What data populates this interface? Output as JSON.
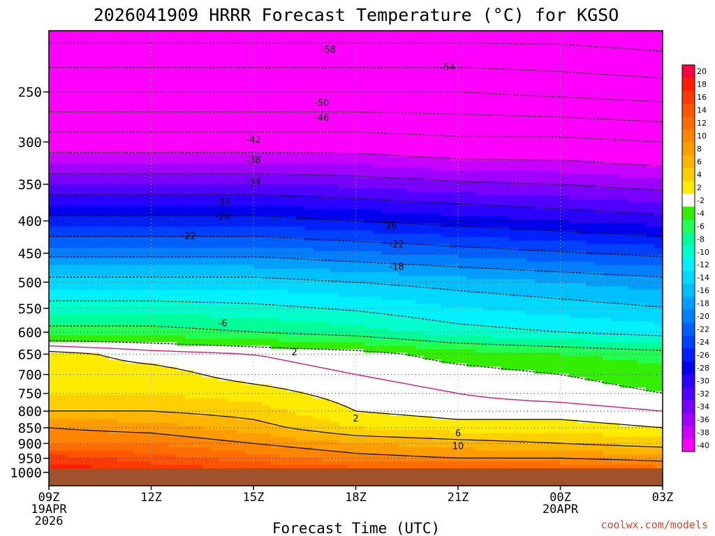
{
  "chart_data": {
    "type": "heatmap",
    "title": "2026041909 HRRR Forecast Temperature (°C) for KGSO",
    "xlabel": "Forecast Time (UTC)",
    "ylabel": "",
    "credit": "coolwx.com/models",
    "y_scale": "log-pressure (inverted)",
    "ylim": [
      1050,
      200
    ],
    "xlim": [
      0,
      18
    ],
    "x_ticks": [
      {
        "x": 0,
        "lines": [
          "09Z",
          "19APR",
          "2026"
        ]
      },
      {
        "x": 3,
        "lines": [
          "12Z"
        ]
      },
      {
        "x": 6,
        "lines": [
          "15Z"
        ]
      },
      {
        "x": 9,
        "lines": [
          "18Z"
        ]
      },
      {
        "x": 12,
        "lines": [
          "21Z"
        ]
      },
      {
        "x": 15,
        "lines": [
          "00Z",
          "20APR"
        ]
      },
      {
        "x": 18,
        "lines": [
          "03Z"
        ]
      }
    ],
    "y_ticks": [
      250,
      300,
      350,
      400,
      450,
      500,
      550,
      600,
      650,
      700,
      750,
      800,
      850,
      900,
      950,
      1000
    ],
    "colorbar": {
      "labels": [
        "20",
        "18",
        "16",
        "14",
        "12",
        "10",
        "8",
        "6",
        "4",
        "2",
        "-2",
        "-4",
        "-6",
        "-8",
        "-10",
        "-12",
        "-14",
        "-16",
        "-18",
        "-20",
        "-22",
        "-24",
        "-26",
        "-28",
        "-30",
        "-32",
        "-34",
        "-36",
        "-38",
        "-40"
      ],
      "colors": [
        "#ff0045",
        "#ff1f00",
        "#ff3a00",
        "#ff5500",
        "#ff6d00",
        "#ff8500",
        "#ff9d00",
        "#ffb400",
        "#ffd000",
        "#ffeb00",
        "#ffffff",
        "#33ee00",
        "#22ff55",
        "#00ff99",
        "#00ffcc",
        "#00f0ff",
        "#00d8ff",
        "#00bfff",
        "#009fff",
        "#007fff",
        "#0060ff",
        "#0040ff",
        "#0020ff",
        "#0000ee",
        "#2a00ff",
        "#5000ff",
        "#7a00ff",
        "#a000ff",
        "#c800ff",
        "#ff00ff"
      ]
    },
    "temperature_profiles": [
      {
        "x": 0,
        "levels": [
          [
            1000,
            20
          ],
          [
            950,
            17
          ],
          [
            900,
            12
          ],
          [
            850,
            10
          ],
          [
            800,
            6
          ],
          [
            750,
            4
          ],
          [
            700,
            3
          ],
          [
            650,
            3
          ],
          [
            600,
            -5
          ],
          [
            500,
            -13
          ],
          [
            400,
            -25
          ],
          [
            300,
            -40
          ],
          [
            250,
            -50
          ],
          [
            200,
            -60
          ]
        ]
      },
      {
        "x": 3,
        "levels": [
          [
            1000,
            18
          ],
          [
            950,
            15
          ],
          [
            900,
            12
          ],
          [
            850,
            9
          ],
          [
            800,
            6
          ],
          [
            750,
            4
          ],
          [
            700,
            3
          ],
          [
            650,
            1
          ],
          [
            600,
            -5
          ],
          [
            500,
            -13
          ],
          [
            400,
            -25
          ],
          [
            300,
            -40
          ],
          [
            250,
            -50
          ],
          [
            200,
            -60
          ]
        ]
      },
      {
        "x": 6,
        "levels": [
          [
            1000,
            17
          ],
          [
            950,
            13
          ],
          [
            900,
            10
          ],
          [
            850,
            7
          ],
          [
            800,
            5
          ],
          [
            750,
            3
          ],
          [
            700,
            1
          ],
          [
            650,
            0
          ],
          [
            600,
            -6
          ],
          [
            500,
            -13
          ],
          [
            400,
            -25
          ],
          [
            300,
            -40
          ],
          [
            250,
            -50
          ],
          [
            200,
            -60
          ]
        ]
      },
      {
        "x": 9,
        "levels": [
          [
            1000,
            16
          ],
          [
            950,
            11
          ],
          [
            900,
            8
          ],
          [
            850,
            4
          ],
          [
            800,
            2
          ],
          [
            750,
            1
          ],
          [
            700,
            0
          ],
          [
            650,
            -1
          ],
          [
            600,
            -7
          ],
          [
            500,
            -14
          ],
          [
            400,
            -26
          ],
          [
            300,
            -40
          ],
          [
            250,
            -50
          ],
          [
            200,
            -60
          ]
        ]
      },
      {
        "x": 12,
        "levels": [
          [
            1000,
            16
          ],
          [
            950,
            10
          ],
          [
            900,
            7
          ],
          [
            850,
            3
          ],
          [
            800,
            1
          ],
          [
            750,
            0
          ],
          [
            700,
            -1
          ],
          [
            650,
            -3
          ],
          [
            600,
            -9
          ],
          [
            500,
            -15
          ],
          [
            400,
            -27
          ],
          [
            300,
            -41
          ],
          [
            250,
            -50
          ],
          [
            200,
            -60
          ]
        ]
      },
      {
        "x": 15,
        "levels": [
          [
            1000,
            16
          ],
          [
            950,
            10
          ],
          [
            900,
            6
          ],
          [
            850,
            3
          ],
          [
            800,
            1
          ],
          [
            750,
            -1
          ],
          [
            700,
            -2
          ],
          [
            650,
            -4
          ],
          [
            600,
            -10
          ],
          [
            500,
            -16
          ],
          [
            400,
            -28
          ],
          [
            300,
            -41
          ],
          [
            250,
            -51
          ],
          [
            200,
            -60
          ]
        ]
      },
      {
        "x": 18,
        "levels": [
          [
            1000,
            14
          ],
          [
            950,
            9
          ],
          [
            900,
            5
          ],
          [
            850,
            2
          ],
          [
            800,
            0
          ],
          [
            750,
            -2
          ],
          [
            700,
            -3
          ],
          [
            650,
            -5
          ],
          [
            600,
            -11
          ],
          [
            500,
            -17
          ],
          [
            400,
            -29
          ],
          [
            300,
            -42
          ],
          [
            250,
            -52
          ],
          [
            200,
            -61
          ]
        ]
      }
    ],
    "contour_labels": [
      {
        "text": "-58",
        "x": 8.2,
        "p": 214
      },
      {
        "text": "-54",
        "x": 11.7,
        "p": 228
      },
      {
        "text": "-50",
        "x": 8.0,
        "p": 260
      },
      {
        "text": "-46",
        "x": 8.0,
        "p": 274
      },
      {
        "text": "-42",
        "x": 6.0,
        "p": 297
      },
      {
        "text": "-38",
        "x": 6.0,
        "p": 320
      },
      {
        "text": "-34",
        "x": 6.0,
        "p": 346
      },
      {
        "text": "-30",
        "x": 5.1,
        "p": 372
      },
      {
        "text": "-26",
        "x": 5.1,
        "p": 393
      },
      {
        "text": "-22",
        "x": 4.1,
        "p": 422
      },
      {
        "text": "-26",
        "x": 10.0,
        "p": 406
      },
      {
        "text": "-22",
        "x": 10.2,
        "p": 435
      },
      {
        "text": "-18",
        "x": 10.2,
        "p": 472
      },
      {
        "text": "-6",
        "x": 5.1,
        "p": 580
      },
      {
        "text": "2",
        "x": 7.2,
        "p": 644
      },
      {
        "text": "2",
        "x": 9.0,
        "p": 820
      },
      {
        "text": "6",
        "x": 12.0,
        "p": 866
      },
      {
        "text": "10",
        "x": 12.0,
        "p": 907
      }
    ]
  }
}
